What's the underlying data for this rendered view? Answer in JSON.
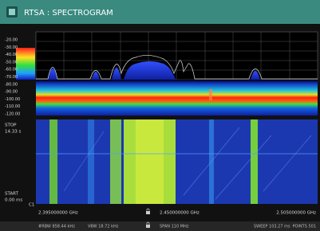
{
  "header": {
    "title": "RTSA : SPECTROGRAM"
  },
  "scale": {
    "labels": [
      "-20.00",
      "-30.00",
      "-40.00",
      "-50.00",
      "-60.00",
      "-70.00",
      "-80.00",
      "-90.00",
      "-100.00",
      "-110.00",
      "-120.00"
    ]
  },
  "spectrogram": {
    "stop_label": "STOP",
    "stop_time": "14.33 s",
    "start_label": "START",
    "start_time": "0.00 ms",
    "channel": "C1"
  },
  "frequency": {
    "start": "2.395000000 GHz",
    "center": "2.450000000 GHz",
    "stop": "2.505000000 GHz"
  },
  "status": {
    "rbw": "#RBW 858.44 kHz",
    "vbw": "VBW 18.72 kHz",
    "span": "SPAN 110 MHz",
    "sweep": "SWEEP 103.27 ms",
    "points": "POINTS 501"
  }
}
